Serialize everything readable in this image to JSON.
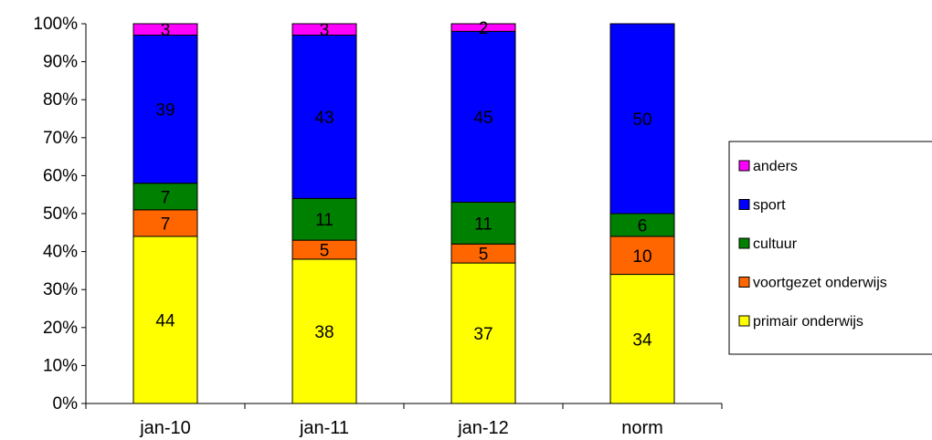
{
  "chart_data": {
    "type": "bar",
    "stacked": true,
    "normalized": true,
    "categories": [
      "jan-10",
      "jan-11",
      "jan-12",
      "norm"
    ],
    "series": [
      {
        "name": "primair onderwijs",
        "color": "#FFFF00",
        "values": [
          44,
          38,
          37,
          34
        ],
        "labels": [
          "44",
          "38",
          "37",
          "34"
        ]
      },
      {
        "name": "voortgezet onderwijs",
        "color": "#FF6600",
        "values": [
          7,
          5,
          5,
          10
        ],
        "labels": [
          "7",
          "5",
          "5",
          "10"
        ]
      },
      {
        "name": "cultuur",
        "color": "#008000",
        "values": [
          7,
          11,
          11,
          6
        ],
        "labels": [
          "7",
          "11",
          "11",
          "6"
        ]
      },
      {
        "name": "sport",
        "color": "#0000FF",
        "values": [
          39,
          43,
          45,
          50
        ],
        "labels": [
          "39",
          "43",
          "45",
          "50"
        ]
      },
      {
        "name": "anders",
        "color": "#FF00FF",
        "values": [
          3,
          3,
          2,
          0
        ],
        "labels": [
          "3",
          "3",
          "2",
          ""
        ]
      }
    ],
    "y_ticks": [
      "0%",
      "10%",
      "20%",
      "30%",
      "40%",
      "50%",
      "60%",
      "70%",
      "80%",
      "90%",
      "100%"
    ],
    "ylim": [
      0,
      100
    ],
    "grid": false,
    "legend": {
      "position": "right",
      "entries": [
        "anders",
        "sport",
        "cultuur",
        "voortgezet onderwijs",
        "primair onderwijs"
      ]
    }
  }
}
